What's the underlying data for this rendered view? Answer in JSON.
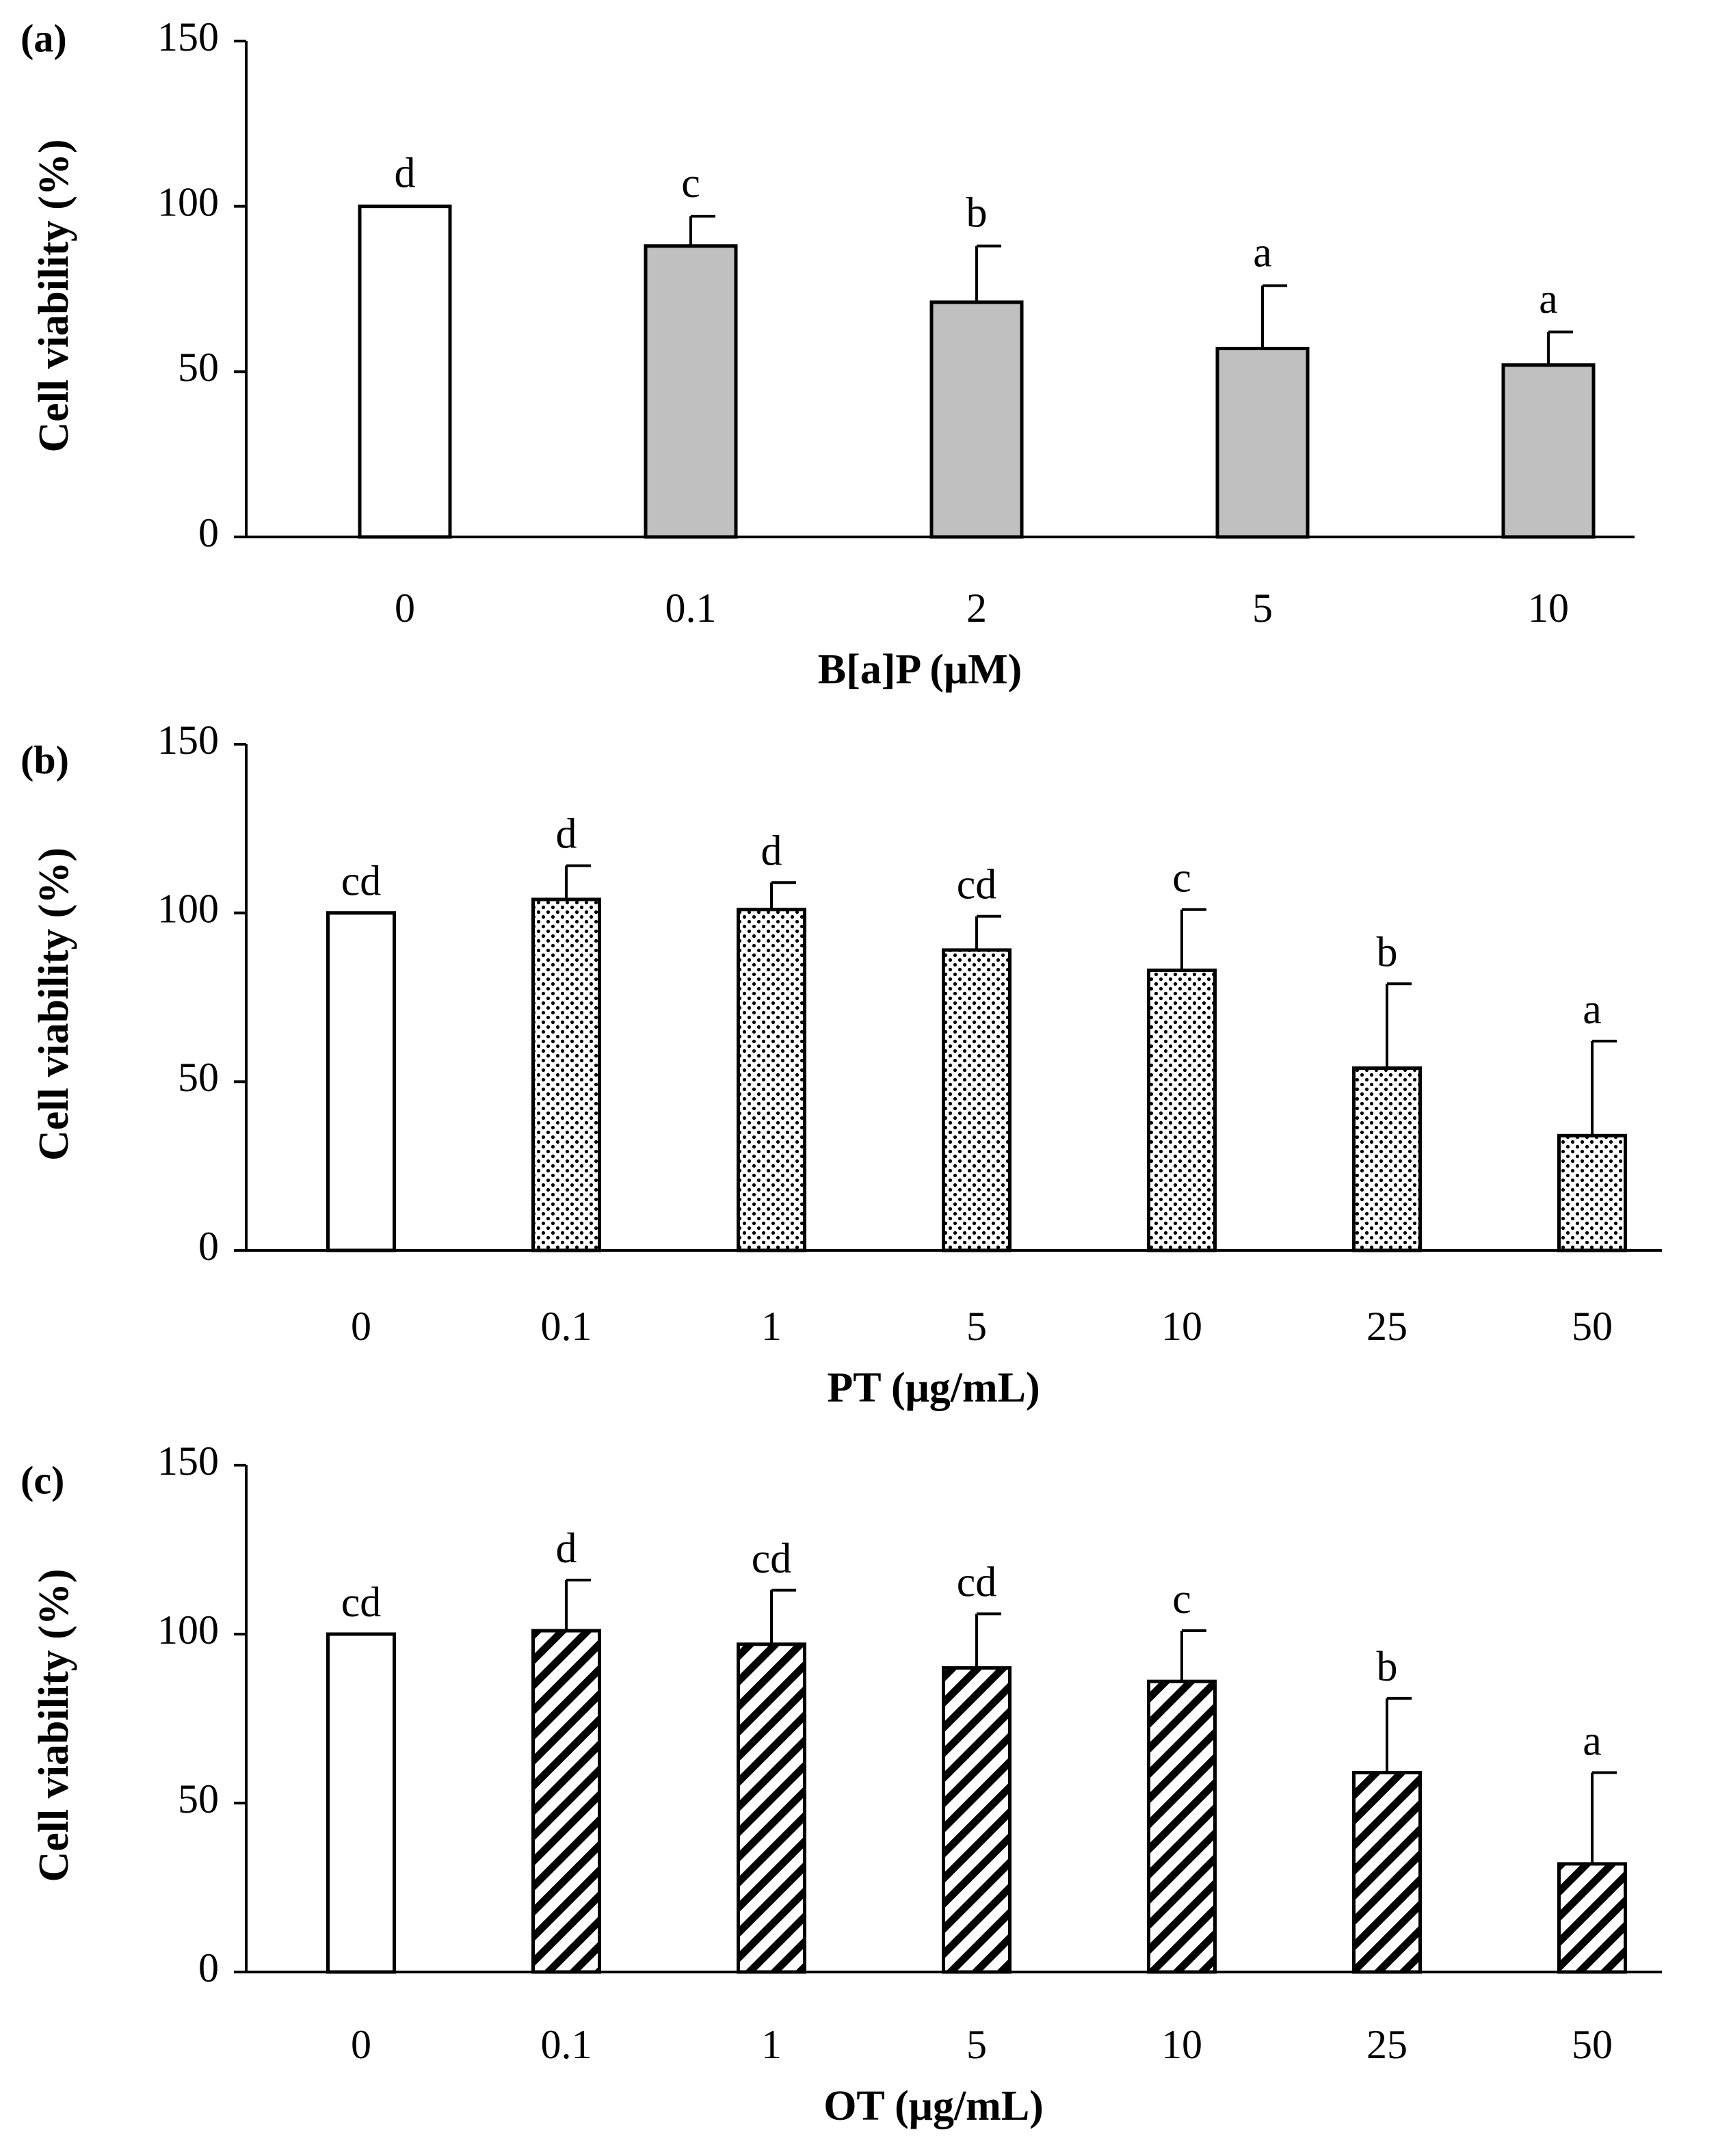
{
  "chart_data": [
    {
      "type": "bar",
      "panel": "(a)",
      "xlabel": "B[a]P (μM)",
      "ylabel": "Cell viability (%)",
      "ylim": [
        0,
        150
      ],
      "yticks": [
        0,
        50,
        100,
        150
      ],
      "categories": [
        "0",
        "0.1",
        "2",
        "5",
        "10"
      ],
      "values": [
        100,
        88,
        71,
        57,
        52
      ],
      "errors": [
        0,
        9,
        17,
        19,
        10
      ],
      "significance": [
        "d",
        "c",
        "b",
        "a",
        "a"
      ],
      "fills": [
        "white",
        "gray",
        "gray",
        "gray",
        "gray"
      ]
    },
    {
      "type": "bar",
      "panel": "(b)",
      "xlabel": "PT (μg/mL)",
      "ylabel": "Cell viability (%)",
      "ylim": [
        0,
        150
      ],
      "yticks": [
        0,
        50,
        100,
        150
      ],
      "categories": [
        "0",
        "0.1",
        "1",
        "5",
        "10",
        "25",
        "50"
      ],
      "values": [
        100,
        104,
        101,
        89,
        83,
        54,
        34
      ],
      "errors": [
        0,
        10,
        8,
        10,
        18,
        25,
        28
      ],
      "significance": [
        "cd",
        "d",
        "d",
        "cd",
        "c",
        "b",
        "a"
      ],
      "fills": [
        "white",
        "dots",
        "dots",
        "dots",
        "dots",
        "dots",
        "dots"
      ]
    },
    {
      "type": "bar",
      "panel": "(c)",
      "xlabel": "OT (μg/mL)",
      "ylabel": "Cell viability (%)",
      "ylim": [
        0,
        150
      ],
      "yticks": [
        0,
        50,
        100,
        150
      ],
      "categories": [
        "0",
        "0.1",
        "1",
        "5",
        "10",
        "25",
        "50"
      ],
      "values": [
        100,
        101,
        97,
        90,
        86,
        59,
        32
      ],
      "errors": [
        0,
        15,
        16,
        16,
        15,
        22,
        27
      ],
      "significance": [
        "cd",
        "d",
        "cd",
        "cd",
        "c",
        "b",
        "a"
      ],
      "fills": [
        "white",
        "hatch",
        "hatch",
        "hatch",
        "hatch",
        "hatch",
        "hatch"
      ]
    }
  ],
  "colors": {
    "bar_gray": "#c0c0c0",
    "bar_white": "#ffffff",
    "pattern_ink": "#000000",
    "axis": "#000000"
  }
}
